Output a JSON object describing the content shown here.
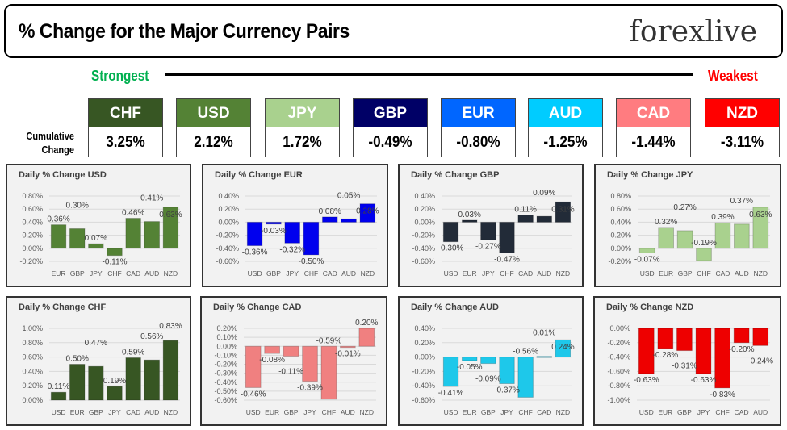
{
  "header": {
    "title": "% Change for the Major Currency Pairs",
    "logo": "forexlive"
  },
  "ranking": {
    "strongest_label": "Strongest",
    "weakest_label": "Weakest",
    "cumulative_label_line1": "Cumulative",
    "cumulative_label_line2": "Change",
    "items": [
      {
        "currency": "CHF",
        "value": "3.25%",
        "color": "#375623"
      },
      {
        "currency": "USD",
        "value": "2.12%",
        "color": "#548235"
      },
      {
        "currency": "JPY",
        "value": "1.72%",
        "color": "#a9d18e"
      },
      {
        "currency": "GBP",
        "value": "-0.49%",
        "color": "#000066"
      },
      {
        "currency": "EUR",
        "value": "-0.80%",
        "color": "#0066ff"
      },
      {
        "currency": "AUD",
        "value": "-1.25%",
        "color": "#00ccff"
      },
      {
        "currency": "CAD",
        "value": "-1.44%",
        "color": "#ff7c80"
      },
      {
        "currency": "NZD",
        "value": "-3.11%",
        "color": "#ff0000"
      }
    ]
  },
  "chart_data": [
    {
      "type": "bar",
      "title": "Daily % Change USD",
      "categories": [
        "EUR",
        "GBP",
        "JPY",
        "CHF",
        "CAD",
        "AUD",
        "NZD"
      ],
      "values": [
        0.36,
        0.3,
        0.07,
        -0.11,
        0.46,
        0.41,
        0.63
      ],
      "ylim": [
        -0.2,
        0.8
      ],
      "ytick_step": 0.2,
      "color": "#548235",
      "grid": true
    },
    {
      "type": "bar",
      "title": "Daily % Change EUR",
      "categories": [
        "USD",
        "GBP",
        "JPY",
        "CHF",
        "CAD",
        "AUD",
        "NZD"
      ],
      "values": [
        -0.36,
        -0.03,
        -0.32,
        -0.5,
        0.08,
        0.05,
        0.28
      ],
      "ylim": [
        -0.6,
        0.4
      ],
      "ytick_step": 0.2,
      "color": "#0000ee",
      "grid": true
    },
    {
      "type": "bar",
      "title": "Daily % Change GBP",
      "categories": [
        "USD",
        "EUR",
        "JPY",
        "CHF",
        "CAD",
        "AUD",
        "NZD"
      ],
      "values": [
        -0.3,
        0.03,
        -0.27,
        -0.47,
        0.11,
        0.09,
        0.31
      ],
      "ylim": [
        -0.6,
        0.4
      ],
      "ytick_step": 0.2,
      "color": "#222b38",
      "grid": true
    },
    {
      "type": "bar",
      "title": "Daily % Change JPY",
      "categories": [
        "USD",
        "EUR",
        "GBP",
        "CHF",
        "CAD",
        "AUD",
        "NZD"
      ],
      "values": [
        -0.07,
        0.32,
        0.27,
        -0.19,
        0.39,
        0.37,
        0.63
      ],
      "ylim": [
        -0.2,
        0.8
      ],
      "ytick_step": 0.2,
      "color": "#a9d18e",
      "grid": true
    },
    {
      "type": "bar",
      "title": "Daily % Change CHF",
      "categories": [
        "USD",
        "EUR",
        "GBP",
        "JPY",
        "CAD",
        "AUD",
        "NZD"
      ],
      "values": [
        0.11,
        0.5,
        0.47,
        0.19,
        0.59,
        0.56,
        0.83
      ],
      "ylim": [
        0,
        1.0
      ],
      "ytick_step": 0.2,
      "color": "#375623",
      "grid": true
    },
    {
      "type": "bar",
      "title": "Daily % Change CAD",
      "categories": [
        "USD",
        "EUR",
        "GBP",
        "JPY",
        "CHF",
        "AUD",
        "NZD"
      ],
      "values": [
        -0.46,
        -0.08,
        -0.11,
        -0.39,
        -0.59,
        -0.01,
        0.2
      ],
      "ylim": [
        -0.6,
        0.2
      ],
      "ytick_step": 0.1,
      "color": "#f08080",
      "grid": true
    },
    {
      "type": "bar",
      "title": "Daily % Change AUD",
      "categories": [
        "USD",
        "EUR",
        "GBP",
        "JPY",
        "CHF",
        "CAD",
        "NZD"
      ],
      "values": [
        -0.41,
        -0.05,
        -0.09,
        -0.37,
        -0.56,
        0.01,
        0.24
      ],
      "ylim": [
        -0.6,
        0.4
      ],
      "ytick_step": 0.2,
      "color": "#1ec8ea",
      "grid": true
    },
    {
      "type": "bar",
      "title": "Daily % Change NZD",
      "categories": [
        "USD",
        "EUR",
        "GBP",
        "JPY",
        "CHF",
        "CAD",
        "AUD"
      ],
      "values": [
        -0.63,
        -0.28,
        -0.31,
        -0.63,
        -0.83,
        -0.2,
        -0.24
      ],
      "ylim": [
        -1.0,
        0
      ],
      "ytick_step": 0.2,
      "color": "#ee0000",
      "grid": true
    }
  ]
}
